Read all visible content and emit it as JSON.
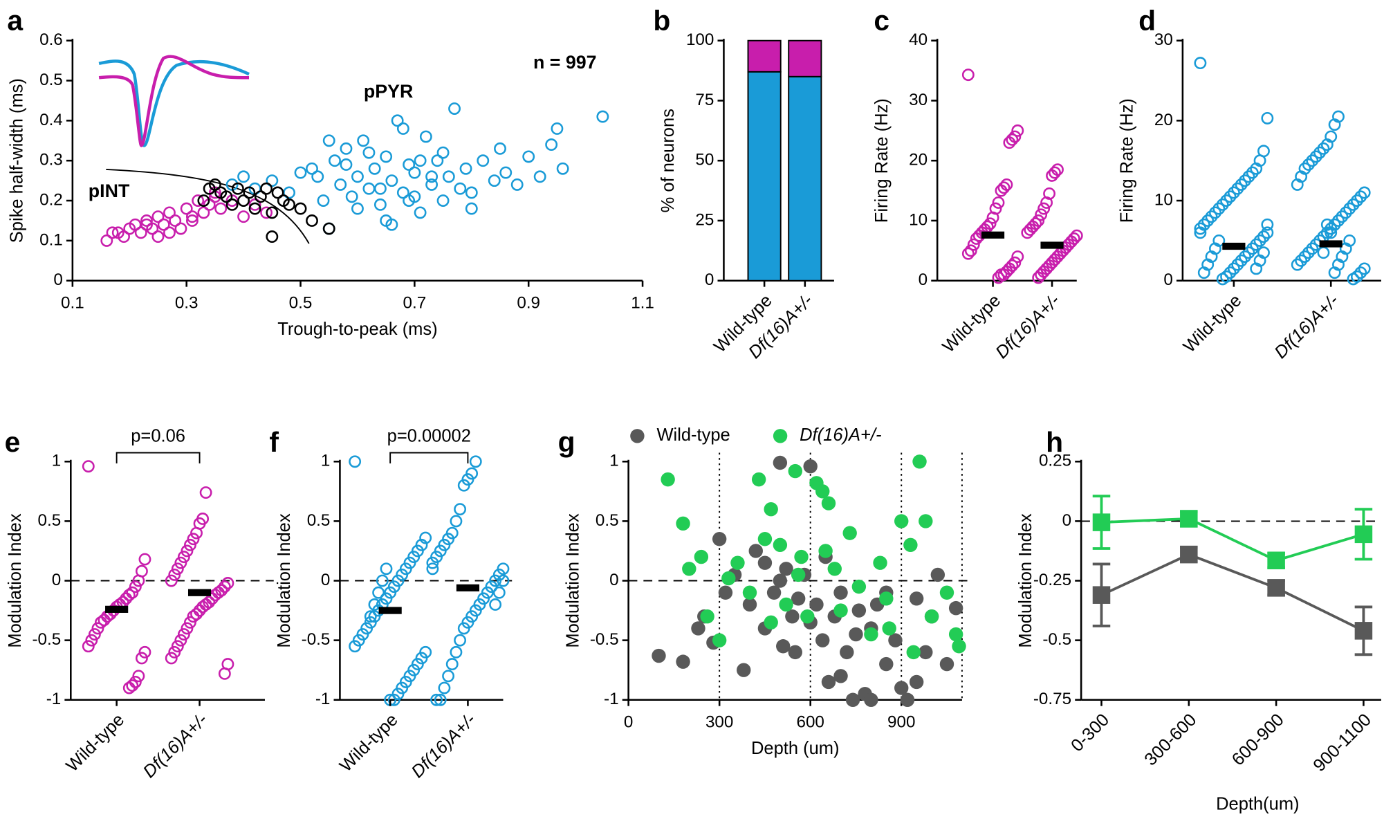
{
  "chart_data": [
    {
      "panel": "a",
      "type": "scatter",
      "xlabel": "Trough-to-peak (ms)",
      "ylabel": "Spike half-width (ms)",
      "xlim": [
        0.1,
        1.1
      ],
      "xticks": [
        0.1,
        0.3,
        0.5,
        0.7,
        0.9,
        1.1
      ],
      "ylim": [
        0,
        0.6
      ],
      "yticks": [
        0,
        0.1,
        0.2,
        0.3,
        0.4,
        0.5,
        0.6
      ],
      "annotations": [
        "n = 997",
        "pPYR",
        "pINT"
      ],
      "series": [
        {
          "color": "#c81eac",
          "x": [
            0.16,
            0.18,
            0.2,
            0.21,
            0.22,
            0.23,
            0.24,
            0.25,
            0.26,
            0.27,
            0.28,
            0.29,
            0.3,
            0.31,
            0.32,
            0.33,
            0.34,
            0.35,
            0.36,
            0.38,
            0.4,
            0.42,
            0.44,
            0.19,
            0.23,
            0.27,
            0.31,
            0.35,
            0.17,
            0.25
          ],
          "values": [
            0.1,
            0.12,
            0.13,
            0.14,
            0.12,
            0.15,
            0.13,
            0.16,
            0.14,
            0.17,
            0.15,
            0.13,
            0.18,
            0.16,
            0.2,
            0.17,
            0.19,
            0.21,
            0.18,
            0.2,
            0.16,
            0.19,
            0.17,
            0.11,
            0.14,
            0.12,
            0.15,
            0.22,
            0.12,
            0.11
          ]
        },
        {
          "color": "#1a9bd7",
          "x": [
            0.38,
            0.4,
            0.42,
            0.45,
            0.48,
            0.5,
            0.52,
            0.54,
            0.55,
            0.56,
            0.57,
            0.58,
            0.59,
            0.6,
            0.61,
            0.62,
            0.63,
            0.64,
            0.65,
            0.66,
            0.67,
            0.68,
            0.69,
            0.7,
            0.71,
            0.72,
            0.73,
            0.74,
            0.75,
            0.76,
            0.77,
            0.78,
            0.79,
            0.8,
            0.82,
            0.84,
            0.86,
            0.88,
            0.9,
            0.92,
            0.94,
            0.96,
            1.03,
            0.6,
            0.62,
            0.65,
            0.68,
            0.7,
            0.73,
            0.58,
            0.55,
            0.75,
            0.8,
            0.66,
            0.64,
            0.71,
            0.69,
            0.53,
            0.85,
            0.95
          ],
          "values": [
            0.24,
            0.26,
            0.23,
            0.25,
            0.22,
            0.27,
            0.28,
            0.2,
            0.13,
            0.3,
            0.24,
            0.33,
            0.21,
            0.26,
            0.35,
            0.23,
            0.28,
            0.19,
            0.31,
            0.25,
            0.4,
            0.22,
            0.29,
            0.27,
            0.17,
            0.36,
            0.24,
            0.3,
            0.2,
            0.26,
            0.43,
            0.23,
            0.28,
            0.22,
            0.3,
            0.25,
            0.27,
            0.24,
            0.31,
            0.26,
            0.34,
            0.28,
            0.41,
            0.18,
            0.32,
            0.15,
            0.38,
            0.21,
            0.26,
            0.29,
            0.35,
            0.32,
            0.18,
            0.14,
            0.23,
            0.3,
            0.2,
            0.26,
            0.33,
            0.38
          ]
        },
        {
          "color": "#000000",
          "x": [
            0.33,
            0.34,
            0.35,
            0.36,
            0.37,
            0.38,
            0.39,
            0.4,
            0.41,
            0.42,
            0.43,
            0.44,
            0.45,
            0.46,
            0.47,
            0.48,
            0.5,
            0.52,
            0.55,
            0.45
          ],
          "values": [
            0.2,
            0.23,
            0.24,
            0.22,
            0.21,
            0.19,
            0.23,
            0.2,
            0.22,
            0.18,
            0.21,
            0.23,
            0.17,
            0.22,
            0.2,
            0.19,
            0.18,
            0.15,
            0.13,
            0.11
          ]
        }
      ]
    },
    {
      "panel": "b",
      "type": "stacked",
      "ylabel": "% of neurons",
      "ylim": [
        0,
        100
      ],
      "yticks": [
        0,
        25,
        50,
        75,
        100
      ],
      "categories": [
        "Wild-type",
        "Df(16)A+/-"
      ],
      "series": [
        {
          "color": "#1a9bd7",
          "values": [
            87,
            85
          ]
        },
        {
          "color": "#c81eac",
          "values": [
            13,
            15
          ]
        }
      ]
    },
    {
      "panel": "c",
      "type": "strip",
      "ylabel": "Firing Rate (Hz)",
      "ylim": [
        0,
        40
      ],
      "yticks": [
        0,
        10,
        20,
        30,
        40
      ],
      "categories": [
        "Wild-type",
        "Df(16)A+/-"
      ],
      "color": "#c81eac",
      "means": [
        7.6,
        5.9
      ],
      "values": [
        [
          34.3,
          25,
          24,
          23.5,
          23,
          16,
          15.5,
          15,
          13,
          12,
          10.5,
          9.5,
          9,
          8.5,
          8,
          7.5,
          7,
          6,
          5,
          4.5,
          4,
          3,
          2.5,
          2,
          1.5,
          1,
          1,
          0.5
        ],
        [
          18.5,
          18,
          17.5,
          14.5,
          13,
          12,
          11,
          10,
          9.5,
          9,
          8.5,
          8,
          7.5,
          7,
          6.5,
          6,
          5.5,
          5,
          4.5,
          4,
          3.5,
          3,
          2.5,
          2,
          1.5,
          1,
          0.5
        ]
      ]
    },
    {
      "panel": "d",
      "type": "strip",
      "ylabel": "Firing Rate (Hz)",
      "ylim": [
        0,
        30
      ],
      "yticks": [
        0,
        10,
        20,
        30
      ],
      "categories": [
        "Wild-type",
        "Df(16)A+/-"
      ],
      "color": "#1a9bd7",
      "means": [
        4.3,
        4.6
      ],
      "values": [
        [
          27.2,
          20.3,
          16.2,
          15,
          14,
          13.5,
          13,
          12.5,
          12,
          11.5,
          11,
          10.5,
          10,
          9.5,
          9,
          8.5,
          8,
          7.5,
          7,
          6.5,
          6,
          5.5,
          5,
          4.5,
          4,
          3.5,
          3,
          2.5,
          2,
          1.5,
          1,
          0.5,
          0.2,
          5,
          4,
          3,
          2,
          1,
          6,
          7,
          3.5,
          2.5,
          1.5
        ],
        [
          20.5,
          19.5,
          18,
          17,
          16.5,
          16,
          15.5,
          15,
          14.5,
          14,
          13,
          12,
          11,
          10.5,
          10,
          9.5,
          9,
          8.5,
          8,
          7.5,
          7,
          6.5,
          6,
          5.5,
          5,
          4.5,
          4,
          3.5,
          3,
          2.5,
          2,
          1.5,
          1,
          0.5,
          0.2,
          5,
          4,
          3,
          2,
          1,
          6,
          7,
          3.5
        ]
      ]
    },
    {
      "panel": "e",
      "type": "strip",
      "ylabel": "Modulation Index",
      "ylim": [
        -1,
        1
      ],
      "yticks": [
        -1,
        -0.5,
        0,
        0.5,
        1
      ],
      "zero_line": true,
      "categories": [
        "Wild-type",
        "Df(16)A+/-"
      ],
      "color": "#c81eac",
      "means": [
        -0.24,
        -0.1
      ],
      "annotations": [
        "p=0.06"
      ],
      "values": [
        [
          0.96,
          0.18,
          0.08,
          0,
          -0.05,
          -0.1,
          -0.12,
          -0.15,
          -0.18,
          -0.2,
          -0.22,
          -0.25,
          -0.28,
          -0.3,
          -0.33,
          -0.35,
          -0.4,
          -0.45,
          -0.5,
          -0.55,
          -0.6,
          -0.65,
          -0.8,
          -0.85,
          -0.88,
          -0.9
        ],
        [
          0.74,
          0.52,
          0.48,
          0.4,
          0.35,
          0.3,
          0.25,
          0.2,
          0.15,
          0.1,
          0.05,
          0,
          -0.02,
          -0.05,
          -0.08,
          -0.1,
          -0.12,
          -0.15,
          -0.18,
          -0.2,
          -0.22,
          -0.25,
          -0.28,
          -0.3,
          -0.35,
          -0.4,
          -0.45,
          -0.5,
          -0.55,
          -0.6,
          -0.65,
          -0.7,
          -0.78
        ]
      ]
    },
    {
      "panel": "f",
      "type": "strip",
      "ylabel": "Modulation Index",
      "ylim": [
        -1,
        1
      ],
      "yticks": [
        -1,
        -0.5,
        0,
        0.5,
        1
      ],
      "zero_line": true,
      "categories": [
        "Wild-type",
        "Df(16)A+/-"
      ],
      "color": "#1a9bd7",
      "means": [
        -0.25,
        -0.06
      ],
      "annotations": [
        "p=0.00002"
      ],
      "values": [
        [
          1,
          0.36,
          0.3,
          0.25,
          0.2,
          0.15,
          0.1,
          0.05,
          0,
          -0.05,
          -0.1,
          -0.15,
          -0.2,
          -0.25,
          -0.3,
          -0.35,
          -0.4,
          -0.45,
          -0.5,
          -0.55,
          -0.6,
          -0.65,
          -0.7,
          -0.75,
          -0.8,
          -0.85,
          -0.9,
          -0.95,
          -1,
          -1,
          0.1,
          0,
          -0.1,
          -0.2,
          -0.3
        ],
        [
          1,
          0.9,
          0.85,
          0.8,
          0.6,
          0.5,
          0.4,
          0.35,
          0.3,
          0.25,
          0.2,
          0.15,
          0.1,
          0.05,
          0,
          -0.05,
          -0.1,
          -0.15,
          -0.2,
          -0.25,
          -0.3,
          -0.35,
          -0.4,
          -0.5,
          -0.6,
          -0.7,
          -0.8,
          -0.9,
          -1,
          -1,
          0.1,
          0,
          -0.1,
          -0.2
        ]
      ]
    },
    {
      "panel": "g",
      "type": "scatter",
      "filled": true,
      "xlabel": "Depth (um)",
      "ylabel": "Modulation Index",
      "zero_line": true,
      "vlines": true,
      "xlim": [
        0,
        1100
      ],
      "xticks": [
        0,
        300,
        600,
        900
      ],
      "ylim": [
        -1,
        1
      ],
      "yticks": [
        -1,
        -0.5,
        0,
        0.5,
        1
      ],
      "series": [
        {
          "name": "Wild-type",
          "color": "#595959",
          "x": [
            100,
            180,
            230,
            250,
            280,
            300,
            320,
            350,
            380,
            400,
            420,
            450,
            480,
            500,
            510,
            520,
            540,
            560,
            580,
            600,
            620,
            640,
            660,
            680,
            700,
            720,
            740,
            760,
            780,
            800,
            820,
            850,
            880,
            900,
            920,
            950,
            980,
            1000,
            1020,
            1050,
            1080,
            500,
            600,
            700,
            800,
            450,
            550,
            650,
            750,
            850,
            950
          ],
          "values": [
            -0.63,
            -0.68,
            -0.4,
            -0.3,
            -0.52,
            0.35,
            -0.1,
            0.05,
            -0.75,
            -0.2,
            0.25,
            -0.4,
            -0.1,
            0.99,
            -0.55,
            0.1,
            -0.3,
            -0.15,
            0.05,
            0.96,
            -0.2,
            -0.5,
            -0.85,
            -0.3,
            -0.1,
            -0.6,
            -1,
            -0.25,
            -0.95,
            -0.4,
            -0.2,
            -0.7,
            -0.5,
            -0.9,
            -1,
            -0.85,
            -0.6,
            -0.3,
            0.05,
            -0.7,
            -0.23,
            0,
            -0.35,
            -0.8,
            -1,
            0.15,
            -0.6,
            0.2,
            -0.45,
            -0.1,
            -0.15
          ]
        },
        {
          "name": "Df(16)A+/-",
          "color": "#22cc55",
          "x": [
            130,
            180,
            200,
            240,
            260,
            300,
            330,
            360,
            400,
            430,
            450,
            470,
            500,
            520,
            550,
            570,
            590,
            620,
            640,
            660,
            680,
            700,
            730,
            760,
            800,
            830,
            860,
            900,
            930,
            960,
            980,
            1000,
            1050,
            1080,
            1090,
            470,
            560,
            650,
            850,
            940
          ],
          "values": [
            0.85,
            0.48,
            0.1,
            0.2,
            -0.3,
            -0.5,
            0.02,
            0.15,
            -0.1,
            0.85,
            0.35,
            0.6,
            0.3,
            -0.2,
            0.92,
            0.2,
            -0.3,
            0.82,
            0.75,
            0.65,
            0.1,
            -0.25,
            0.4,
            -0.05,
            -0.45,
            0.15,
            -0.4,
            0.5,
            0.3,
            1,
            0.5,
            -0.3,
            -0.1,
            -0.45,
            -0.55,
            -0.35,
            0.05,
            0.25,
            -0.15,
            -0.6
          ]
        }
      ]
    },
    {
      "panel": "h",
      "type": "line",
      "xlabel": "Depth(um)",
      "ylabel": "Modulation Index",
      "zero_line": true,
      "ylim": [
        -0.75,
        0.25
      ],
      "yticks": [
        -0.75,
        -0.5,
        -0.25,
        0,
        0.25
      ],
      "categories": [
        "0-300",
        "300-600",
        "600-900",
        "900-1100"
      ],
      "series": [
        {
          "color": "#595959",
          "values": [
            -0.31,
            -0.14,
            -0.28,
            -0.46
          ],
          "errors": [
            0.13,
            0.03,
            0.03,
            0.1
          ]
        },
        {
          "color": "#22cc55",
          "values": [
            -0.005,
            0.01,
            -0.165,
            -0.055
          ],
          "errors": [
            0.11,
            0.03,
            0.03,
            0.105
          ]
        }
      ]
    }
  ]
}
